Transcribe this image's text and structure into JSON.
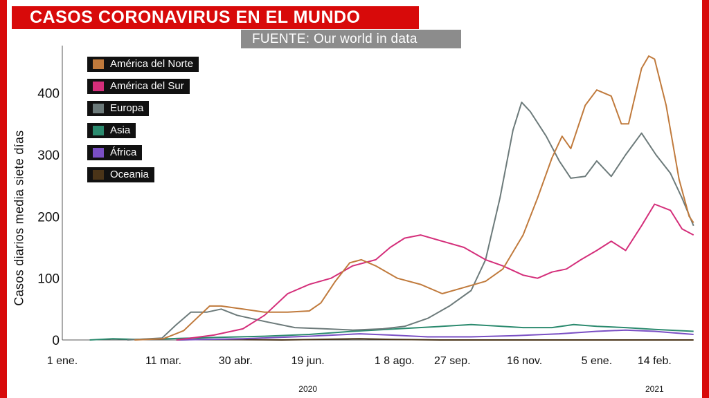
{
  "title": "CASOS CORONAVIRUS EN EL MUNDO",
  "source": "FUENTE: Our world in data",
  "chart_data": {
    "type": "line",
    "title": "CASOS CORONAVIRUS EN EL MUNDO",
    "ylabel": "Casos diarios media siete días",
    "xlabel": "",
    "ylim": [
      0,
      450
    ],
    "yticks": [
      0,
      100,
      200,
      300,
      400
    ],
    "ytick_labels": [
      "0",
      "100",
      "200",
      "300",
      "400"
    ],
    "xlim": [
      "2020-01-01",
      "2021-03-05"
    ],
    "xticks": [
      {
        "date": "2020-01-01",
        "label": "1 ene."
      },
      {
        "date": "2020-03-11",
        "label": "11 mar."
      },
      {
        "date": "2020-04-30",
        "label": "30 abr."
      },
      {
        "date": "2020-06-19",
        "label": "19 jun."
      },
      {
        "date": "2020-08-18",
        "label": "1 8 ago."
      },
      {
        "date": "2020-09-27",
        "label": "27 sep."
      },
      {
        "date": "2020-11-16",
        "label": "16 nov."
      },
      {
        "date": "2021-01-05",
        "label": "5 ene."
      },
      {
        "date": "2021-02-14",
        "label": "14 feb."
      }
    ],
    "years": [
      {
        "date": "2020-06-19",
        "label": "2020"
      },
      {
        "date": "2021-02-14",
        "label": "2021"
      }
    ],
    "grid": false,
    "legend_position": "top-left",
    "series": [
      {
        "name": "América del Norte",
        "color": "#c07a3c",
        "points": [
          [
            "2020-02-20",
            0
          ],
          [
            "2020-03-11",
            2
          ],
          [
            "2020-03-25",
            15
          ],
          [
            "2020-04-03",
            35
          ],
          [
            "2020-04-12",
            55
          ],
          [
            "2020-04-20",
            55
          ],
          [
            "2020-05-05",
            50
          ],
          [
            "2020-05-20",
            45
          ],
          [
            "2020-06-05",
            45
          ],
          [
            "2020-06-20",
            47
          ],
          [
            "2020-06-28",
            60
          ],
          [
            "2020-07-08",
            95
          ],
          [
            "2020-07-18",
            125
          ],
          [
            "2020-07-26",
            130
          ],
          [
            "2020-08-05",
            120
          ],
          [
            "2020-08-20",
            100
          ],
          [
            "2020-09-05",
            90
          ],
          [
            "2020-09-20",
            75
          ],
          [
            "2020-10-05",
            85
          ],
          [
            "2020-10-20",
            95
          ],
          [
            "2020-11-01",
            115
          ],
          [
            "2020-11-15",
            170
          ],
          [
            "2020-11-25",
            230
          ],
          [
            "2020-12-05",
            295
          ],
          [
            "2020-12-12",
            330
          ],
          [
            "2020-12-18",
            310
          ],
          [
            "2020-12-28",
            380
          ],
          [
            "2021-01-05",
            405
          ],
          [
            "2021-01-15",
            395
          ],
          [
            "2021-01-22",
            350
          ],
          [
            "2021-01-27",
            350
          ],
          [
            "2021-02-01",
            400
          ],
          [
            "2021-02-05",
            440
          ],
          [
            "2021-02-10",
            460
          ],
          [
            "2021-02-14",
            455
          ],
          [
            "2021-02-22",
            380
          ],
          [
            "2021-03-03",
            260
          ],
          [
            "2021-03-10",
            200
          ],
          [
            "2021-03-13",
            190
          ]
        ]
      },
      {
        "name": "América del Sur",
        "color": "#d42e7a",
        "points": [
          [
            "2020-03-20",
            0
          ],
          [
            "2020-04-15",
            8
          ],
          [
            "2020-05-05",
            18
          ],
          [
            "2020-05-20",
            40
          ],
          [
            "2020-06-05",
            75
          ],
          [
            "2020-06-20",
            90
          ],
          [
            "2020-07-05",
            100
          ],
          [
            "2020-07-20",
            120
          ],
          [
            "2020-08-05",
            130
          ],
          [
            "2020-08-15",
            150
          ],
          [
            "2020-08-25",
            165
          ],
          [
            "2020-09-05",
            170
          ],
          [
            "2020-09-20",
            160
          ],
          [
            "2020-10-05",
            150
          ],
          [
            "2020-10-20",
            130
          ],
          [
            "2020-11-01",
            120
          ],
          [
            "2020-11-15",
            105
          ],
          [
            "2020-11-25",
            100
          ],
          [
            "2020-12-05",
            110
          ],
          [
            "2020-12-15",
            115
          ],
          [
            "2020-12-25",
            130
          ],
          [
            "2021-01-05",
            145
          ],
          [
            "2021-01-15",
            160
          ],
          [
            "2021-01-25",
            145
          ],
          [
            "2021-02-05",
            185
          ],
          [
            "2021-02-14",
            220
          ],
          [
            "2021-02-25",
            210
          ],
          [
            "2021-03-05",
            180
          ],
          [
            "2021-03-13",
            170
          ]
        ]
      },
      {
        "name": "Europa",
        "color": "#6c7a7a",
        "points": [
          [
            "2020-02-15",
            0
          ],
          [
            "2020-03-10",
            3
          ],
          [
            "2020-03-20",
            25
          ],
          [
            "2020-03-30",
            45
          ],
          [
            "2020-04-10",
            45
          ],
          [
            "2020-04-20",
            50
          ],
          [
            "2020-05-01",
            40
          ],
          [
            "2020-05-20",
            30
          ],
          [
            "2020-06-10",
            20
          ],
          [
            "2020-07-01",
            18
          ],
          [
            "2020-07-20",
            16
          ],
          [
            "2020-08-10",
            18
          ],
          [
            "2020-08-25",
            22
          ],
          [
            "2020-09-10",
            35
          ],
          [
            "2020-09-25",
            55
          ],
          [
            "2020-10-10",
            80
          ],
          [
            "2020-10-20",
            130
          ],
          [
            "2020-10-30",
            230
          ],
          [
            "2020-11-08",
            340
          ],
          [
            "2020-11-14",
            385
          ],
          [
            "2020-11-20",
            370
          ],
          [
            "2020-12-01",
            330
          ],
          [
            "2020-12-10",
            290
          ],
          [
            "2020-12-18",
            262
          ],
          [
            "2020-12-28",
            265
          ],
          [
            "2021-01-05",
            290
          ],
          [
            "2021-01-15",
            265
          ],
          [
            "2021-01-25",
            300
          ],
          [
            "2021-02-05",
            335
          ],
          [
            "2021-02-15",
            300
          ],
          [
            "2021-02-25",
            270
          ],
          [
            "2021-03-05",
            230
          ],
          [
            "2021-03-13",
            185
          ]
        ]
      },
      {
        "name": "Asia",
        "color": "#2b8a6e",
        "points": [
          [
            "2020-01-20",
            0
          ],
          [
            "2020-02-05",
            2
          ],
          [
            "2020-02-20",
            1
          ],
          [
            "2020-03-15",
            2
          ],
          [
            "2020-04-15",
            4
          ],
          [
            "2020-05-20",
            6
          ],
          [
            "2020-06-20",
            9
          ],
          [
            "2020-07-20",
            14
          ],
          [
            "2020-08-20",
            18
          ],
          [
            "2020-09-20",
            22
          ],
          [
            "2020-10-10",
            25
          ],
          [
            "2020-10-25",
            23
          ],
          [
            "2020-11-15",
            20
          ],
          [
            "2020-12-05",
            20
          ],
          [
            "2020-12-20",
            25
          ],
          [
            "2021-01-05",
            22
          ],
          [
            "2021-01-25",
            20
          ],
          [
            "2021-02-14",
            17
          ],
          [
            "2021-03-13",
            14
          ]
        ]
      },
      {
        "name": "África",
        "color": "#7a4fc4",
        "points": [
          [
            "2020-03-20",
            0
          ],
          [
            "2020-05-05",
            2
          ],
          [
            "2020-06-20",
            6
          ],
          [
            "2020-07-25",
            10
          ],
          [
            "2020-08-15",
            8
          ],
          [
            "2020-09-10",
            5
          ],
          [
            "2020-10-10",
            5
          ],
          [
            "2020-11-10",
            7
          ],
          [
            "2020-12-10",
            10
          ],
          [
            "2021-01-05",
            14
          ],
          [
            "2021-01-25",
            16
          ],
          [
            "2021-02-14",
            14
          ],
          [
            "2021-03-13",
            9
          ]
        ]
      },
      {
        "name": "Oceania",
        "color": "#4a3418",
        "points": [
          [
            "2020-03-20",
            0
          ],
          [
            "2020-04-05",
            1
          ],
          [
            "2020-06-01",
            0
          ],
          [
            "2020-07-25",
            2
          ],
          [
            "2020-08-15",
            1
          ],
          [
            "2020-09-20",
            0
          ],
          [
            "2021-03-13",
            0
          ]
        ]
      }
    ]
  }
}
